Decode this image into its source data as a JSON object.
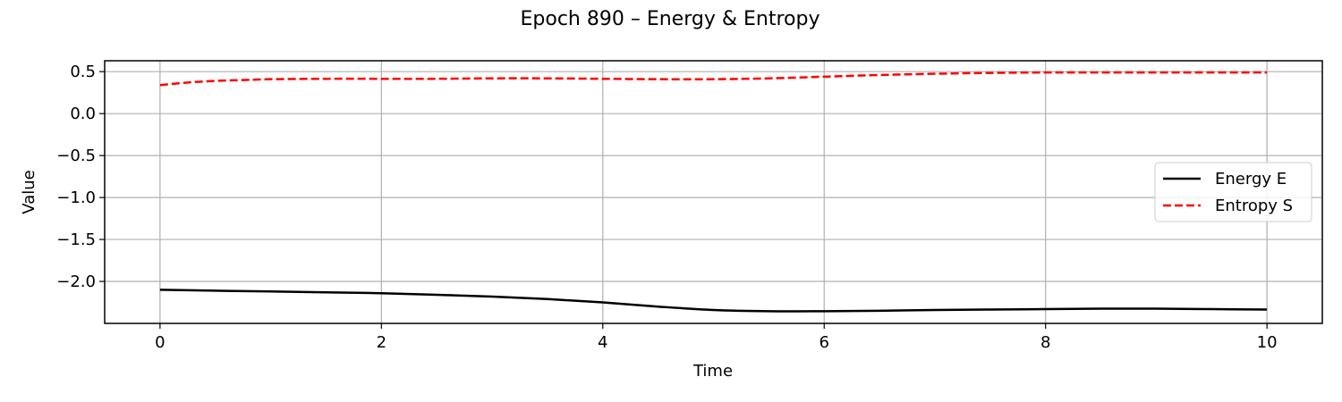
{
  "chart_data": {
    "type": "line",
    "title": "Epoch 890 – Energy & Entropy",
    "xlabel": "Time",
    "ylabel": "Value",
    "xlim": [
      -0.5,
      10.5
    ],
    "ylim": [
      -2.5,
      0.63
    ],
    "xticks": [
      0,
      2,
      4,
      6,
      8,
      10
    ],
    "xtick_labels": [
      "0",
      "2",
      "4",
      "6",
      "8",
      "10"
    ],
    "yticks": [
      0.5,
      0.0,
      -0.5,
      -1.0,
      -1.5,
      -2.0
    ],
    "ytick_labels": [
      "0.5",
      "0.0",
      "−0.5",
      "−1.0",
      "−1.5",
      "−2.0"
    ],
    "grid": true,
    "legend_position": "center-right",
    "series": [
      {
        "name": "Energy E",
        "color": "#000000",
        "dash": "solid",
        "x": [
          0,
          0.5,
          1,
          1.5,
          2,
          2.5,
          3,
          3.5,
          4,
          4.5,
          5,
          5.5,
          6,
          6.5,
          7,
          7.5,
          8,
          8.5,
          9,
          9.5,
          10
        ],
        "y": [
          -2.1,
          -2.11,
          -2.12,
          -2.13,
          -2.14,
          -2.16,
          -2.18,
          -2.21,
          -2.25,
          -2.3,
          -2.34,
          -2.355,
          -2.355,
          -2.35,
          -2.34,
          -2.335,
          -2.33,
          -2.325,
          -2.325,
          -2.33,
          -2.335
        ]
      },
      {
        "name": "Entropy S",
        "color": "#ff0000",
        "dash": "dashed",
        "x": [
          0,
          0.25,
          0.5,
          0.75,
          1,
          1.5,
          2,
          2.5,
          3,
          3.5,
          4,
          4.5,
          5,
          5.5,
          6,
          6.5,
          7,
          7.5,
          8,
          8.5,
          9,
          9.5,
          10
        ],
        "y": [
          0.34,
          0.37,
          0.39,
          0.4,
          0.41,
          0.415,
          0.415,
          0.415,
          0.42,
          0.42,
          0.415,
          0.41,
          0.41,
          0.42,
          0.44,
          0.46,
          0.475,
          0.485,
          0.49,
          0.49,
          0.49,
          0.49,
          0.49
        ]
      }
    ]
  }
}
